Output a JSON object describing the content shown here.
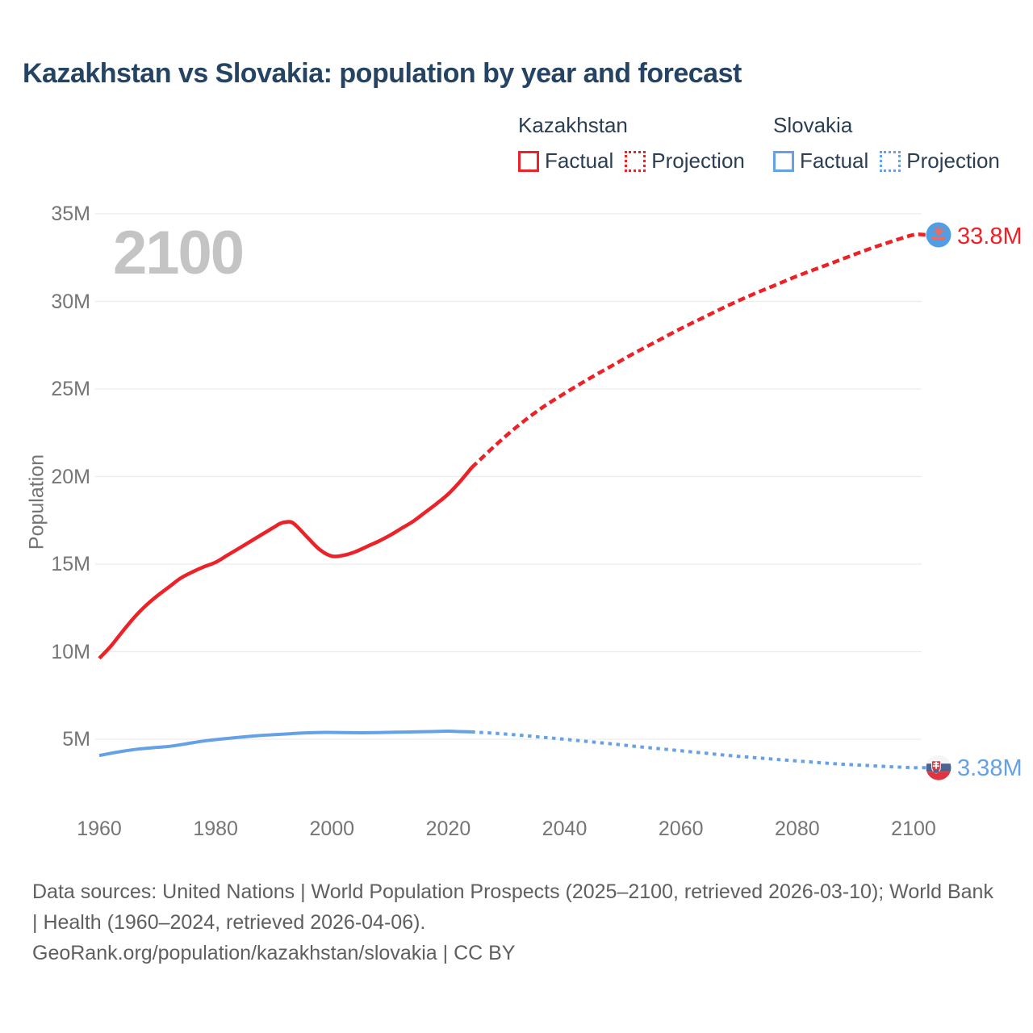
{
  "title": "Kazakhstan vs Slovakia: population by year and forecast",
  "watermark": "2100",
  "legend": {
    "kazakhstan": {
      "label": "Kazakhstan",
      "factual_label": "Factual",
      "projection_label": "Projection"
    },
    "slovakia": {
      "label": "Slovakia",
      "factual_label": "Factual",
      "projection_label": "Projection"
    }
  },
  "y_axis": {
    "label": "Population",
    "ticks": [
      "35M",
      "30M",
      "25M",
      "20M",
      "15M",
      "10M",
      "5M"
    ]
  },
  "x_axis": {
    "ticks": [
      "1960",
      "1980",
      "2000",
      "2020",
      "2040",
      "2060",
      "2080",
      "2100"
    ]
  },
  "end_labels": {
    "kazakhstan": "33.8M",
    "slovakia": "3.38M"
  },
  "footer": {
    "sources": "Data sources: United Nations | World Population Prospects (2025–2100, retrieved 2026-03-10); World Bank | Health (1960–2024, retrieved 2026-04-06).",
    "attribution": "GeoRank.org/population/kazakhstan/slovakia | CC BY"
  },
  "colors": {
    "kazakhstan": "#eb2328",
    "slovakia": "#64a1e6",
    "title": "#254463",
    "legend_text": "#2c3e54",
    "axis_text": "#757575",
    "watermark": "#c4c4c4",
    "grid": "#ececec",
    "footer_text": "#5f5f5f",
    "kazakhstan_flag_bg": "#4f9fe6",
    "kazakhstan_flag_emblem": "#ef6a5e",
    "slovakia_flag_white": "#f5f5f5",
    "slovakia_flag_blue": "#4e6490",
    "slovakia_flag_red": "#e03540"
  },
  "chart_data": {
    "type": "line",
    "title": "Kazakhstan vs Slovakia: population by year and forecast",
    "xlabel": "",
    "ylabel": "Population",
    "x_range": [
      1960,
      2100
    ],
    "y_ticks_millions": [
      35,
      30,
      25,
      20,
      15,
      10,
      5
    ],
    "x_ticks": [
      1960,
      1980,
      2000,
      2020,
      2040,
      2060,
      2080,
      2100
    ],
    "grid": "horizontal",
    "legend_position": "top-right",
    "units": "millions of people",
    "series": [
      {
        "name": "Kazakhstan Factual",
        "country": "Kazakhstan",
        "kind": "factual",
        "style": "solid",
        "color": "#eb2328",
        "points": [
          [
            1960,
            9.62
          ],
          [
            1962,
            10.32
          ],
          [
            1964,
            11.15
          ],
          [
            1966,
            11.95
          ],
          [
            1968,
            12.63
          ],
          [
            1970,
            13.2
          ],
          [
            1972,
            13.7
          ],
          [
            1974,
            14.2
          ],
          [
            1976,
            14.55
          ],
          [
            1978,
            14.85
          ],
          [
            1980,
            15.1
          ],
          [
            1982,
            15.5
          ],
          [
            1984,
            15.9
          ],
          [
            1986,
            16.3
          ],
          [
            1988,
            16.7
          ],
          [
            1990,
            17.1
          ],
          [
            1991,
            17.3
          ],
          [
            1992,
            17.4
          ],
          [
            1993,
            17.4
          ],
          [
            1994,
            17.15
          ],
          [
            1996,
            16.45
          ],
          [
            1998,
            15.8
          ],
          [
            2000,
            15.45
          ],
          [
            2002,
            15.5
          ],
          [
            2004,
            15.7
          ],
          [
            2006,
            16.0
          ],
          [
            2008,
            16.3
          ],
          [
            2010,
            16.65
          ],
          [
            2012,
            17.05
          ],
          [
            2014,
            17.45
          ],
          [
            2016,
            17.95
          ],
          [
            2018,
            18.45
          ],
          [
            2020,
            19.0
          ],
          [
            2022,
            19.7
          ],
          [
            2024,
            20.5
          ]
        ]
      },
      {
        "name": "Kazakhstan Projection",
        "country": "Kazakhstan",
        "kind": "projection",
        "style": "dashed",
        "color": "#eb2328",
        "end_label": "33.8M",
        "end_value": 33.8,
        "marker": "kazakhstan-flag",
        "points": [
          [
            2024,
            20.5
          ],
          [
            2028,
            21.75
          ],
          [
            2032,
            22.9
          ],
          [
            2036,
            23.9
          ],
          [
            2040,
            24.75
          ],
          [
            2044,
            25.55
          ],
          [
            2048,
            26.3
          ],
          [
            2052,
            27.05
          ],
          [
            2056,
            27.75
          ],
          [
            2060,
            28.45
          ],
          [
            2064,
            29.1
          ],
          [
            2068,
            29.75
          ],
          [
            2072,
            30.35
          ],
          [
            2076,
            30.9
          ],
          [
            2080,
            31.45
          ],
          [
            2084,
            31.95
          ],
          [
            2088,
            32.45
          ],
          [
            2092,
            32.95
          ],
          [
            2096,
            33.4
          ],
          [
            2100,
            33.8
          ]
        ]
      },
      {
        "name": "Slovakia Factual",
        "country": "Slovakia",
        "kind": "factual",
        "style": "solid",
        "color": "#64a1e6",
        "points": [
          [
            1960,
            4.07
          ],
          [
            1963,
            4.26
          ],
          [
            1966,
            4.41
          ],
          [
            1969,
            4.51
          ],
          [
            1972,
            4.59
          ],
          [
            1975,
            4.74
          ],
          [
            1978,
            4.9
          ],
          [
            1981,
            5.01
          ],
          [
            1984,
            5.11
          ],
          [
            1987,
            5.2
          ],
          [
            1990,
            5.26
          ],
          [
            1993,
            5.32
          ],
          [
            1996,
            5.37
          ],
          [
            1999,
            5.39
          ],
          [
            2002,
            5.38
          ],
          [
            2005,
            5.37
          ],
          [
            2008,
            5.38
          ],
          [
            2011,
            5.4
          ],
          [
            2014,
            5.42
          ],
          [
            2017,
            5.44
          ],
          [
            2020,
            5.46
          ],
          [
            2022,
            5.44
          ],
          [
            2024,
            5.42
          ]
        ]
      },
      {
        "name": "Slovakia Projection",
        "country": "Slovakia",
        "kind": "projection",
        "style": "dashed",
        "color": "#64a1e6",
        "end_label": "3.38M",
        "end_value": 3.38,
        "marker": "slovakia-flag",
        "points": [
          [
            2024,
            5.42
          ],
          [
            2028,
            5.34
          ],
          [
            2032,
            5.24
          ],
          [
            2036,
            5.12
          ],
          [
            2040,
            5.0
          ],
          [
            2044,
            4.87
          ],
          [
            2048,
            4.74
          ],
          [
            2052,
            4.6
          ],
          [
            2056,
            4.47
          ],
          [
            2060,
            4.34
          ],
          [
            2064,
            4.21
          ],
          [
            2068,
            4.08
          ],
          [
            2072,
            3.97
          ],
          [
            2076,
            3.86
          ],
          [
            2080,
            3.76
          ],
          [
            2084,
            3.66
          ],
          [
            2088,
            3.57
          ],
          [
            2092,
            3.5
          ],
          [
            2096,
            3.43
          ],
          [
            2100,
            3.38
          ]
        ]
      }
    ]
  }
}
